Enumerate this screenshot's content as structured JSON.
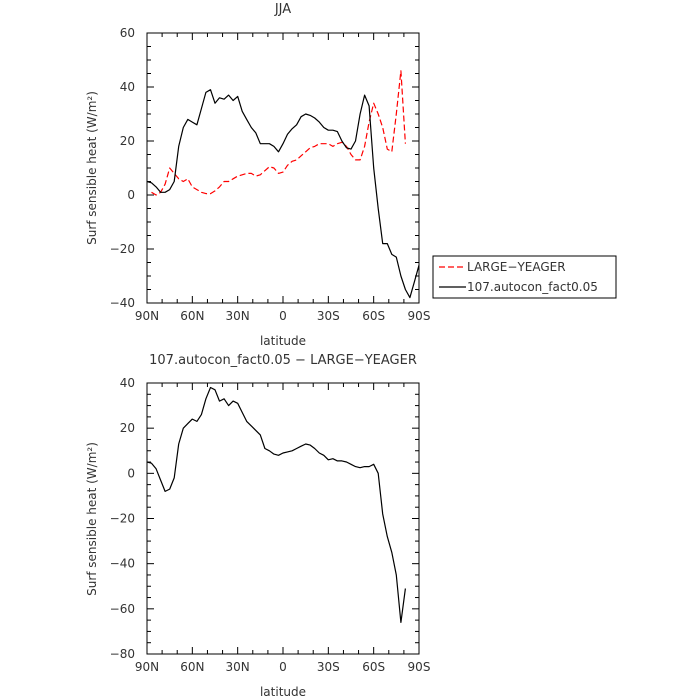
{
  "chart_data": [
    {
      "type": "line",
      "title": "JJA",
      "xlabel": "latitude",
      "ylabel": "Surf sensible heat (W/m²)",
      "xlim": [
        90,
        -90
      ],
      "ylim": [
        -40,
        60
      ],
      "x_ticks": [
        90,
        60,
        30,
        0,
        -30,
        -60,
        -90
      ],
      "x_tick_labels": [
        "90N",
        "60N",
        "30N",
        "0",
        "30S",
        "60S",
        "90S"
      ],
      "y_ticks": [
        -40,
        -20,
        0,
        20,
        40,
        60
      ],
      "y_tick_labels": [
        "−40",
        "−20",
        "0",
        "20",
        "40",
        "60"
      ],
      "legend_position": "outside-right",
      "series": [
        {
          "name": "LARGE−YEAGER",
          "color": "#ff0000",
          "dash": "dashed",
          "x": [
            87,
            84,
            81,
            78,
            75,
            72,
            69,
            66,
            63,
            60,
            57,
            54,
            51,
            48,
            45,
            42,
            39,
            36,
            33,
            30,
            27,
            24,
            21,
            18,
            15,
            12,
            9,
            6,
            3,
            0,
            -3,
            -6,
            -9,
            -12,
            -15,
            -18,
            -21,
            -24,
            -27,
            -30,
            -33,
            -36,
            -39,
            -42,
            -45,
            -48,
            -51,
            -54,
            -57,
            -60,
            -63,
            -66,
            -69,
            -72,
            -75,
            -78,
            -81
          ],
          "y": [
            1,
            0,
            1,
            4,
            10,
            8,
            6,
            5,
            6,
            3,
            2,
            1,
            0.5,
            0.5,
            1.5,
            3,
            5,
            5,
            6,
            7,
            7.5,
            8,
            8,
            7,
            7.5,
            9,
            10.5,
            10,
            8,
            8.5,
            11,
            12.5,
            13,
            14.5,
            16,
            17.5,
            18,
            19,
            19,
            19,
            18,
            19,
            19.5,
            18,
            15,
            13,
            13,
            18,
            27,
            34,
            30,
            25,
            17,
            16,
            30,
            46,
            19
          ]
        },
        {
          "name": "107.autocon_fact0.05",
          "color": "#000000",
          "dash": "solid",
          "x": [
            90,
            87,
            84,
            81,
            78,
            75,
            72,
            69,
            66,
            63,
            60,
            57,
            54,
            51,
            48,
            45,
            42,
            39,
            36,
            33,
            30,
            27,
            24,
            21,
            18,
            15,
            12,
            9,
            6,
            3,
            0,
            -3,
            -6,
            -9,
            -12,
            -15,
            -18,
            -21,
            -24,
            -27,
            -30,
            -33,
            -36,
            -39,
            -42,
            -45,
            -48,
            -51,
            -54,
            -57,
            -60,
            -63,
            -66,
            -69,
            -72,
            -75,
            -78,
            -81,
            -84,
            -87,
            -90
          ],
          "y": [
            5,
            4.5,
            3,
            1,
            1,
            2,
            5,
            18,
            25,
            28,
            27,
            26,
            32,
            38,
            39,
            34,
            36,
            35.5,
            37,
            35,
            36.5,
            31,
            28,
            25,
            23,
            19,
            19,
            19,
            18,
            16,
            19,
            22.5,
            24.5,
            26,
            29,
            30,
            29.5,
            28.5,
            27,
            25,
            24,
            24,
            23.5,
            20,
            17.5,
            17,
            20,
            30,
            37,
            33,
            10,
            -5,
            -18,
            -18,
            -22,
            -23,
            -30,
            -35,
            -38,
            -32,
            -26
          ]
        }
      ]
    },
    {
      "type": "line",
      "title": "107.autocon_fact0.05 − LARGE−YEAGER",
      "xlabel": "latitude",
      "ylabel": "Surf sensible heat (W/m²)",
      "xlim": [
        90,
        -90
      ],
      "ylim": [
        -80,
        40
      ],
      "x_ticks": [
        90,
        60,
        30,
        0,
        -30,
        -60,
        -90
      ],
      "x_tick_labels": [
        "90N",
        "60N",
        "30N",
        "0",
        "30S",
        "60S",
        "90S"
      ],
      "y_ticks": [
        -80,
        -60,
        -40,
        -20,
        0,
        20,
        40
      ],
      "y_tick_labels": [
        "−80",
        "−60",
        "−40",
        "−20",
        "0",
        "20",
        "40"
      ],
      "series": [
        {
          "color": "#000000",
          "dash": "solid",
          "x": [
            90,
            87,
            84,
            81,
            78,
            75,
            72,
            69,
            66,
            63,
            60,
            57,
            54,
            51,
            48,
            45,
            42,
            39,
            36,
            33,
            30,
            27,
            24,
            21,
            18,
            15,
            12,
            9,
            6,
            3,
            0,
            -3,
            -6,
            -9,
            -12,
            -15,
            -18,
            -21,
            -24,
            -27,
            -30,
            -33,
            -36,
            -39,
            -42,
            -45,
            -48,
            -51,
            -54,
            -57,
            -60,
            -63,
            -66,
            -69,
            -72,
            -75,
            -78,
            -81
          ],
          "y": [
            5,
            4.5,
            2,
            -3,
            -8,
            -7,
            -2,
            13,
            20,
            22,
            24,
            23,
            26,
            33,
            38,
            37,
            32,
            33,
            30,
            32,
            31,
            27,
            23,
            21,
            19,
            17,
            11,
            10,
            8.5,
            8,
            9,
            9.5,
            10,
            11,
            12,
            13,
            12.5,
            11,
            9,
            8,
            6,
            6.5,
            5.5,
            5.5,
            5,
            4,
            3,
            2.5,
            3,
            3,
            4,
            0,
            -18,
            -28,
            -35,
            -45,
            -66,
            -51
          ]
        }
      ]
    }
  ]
}
